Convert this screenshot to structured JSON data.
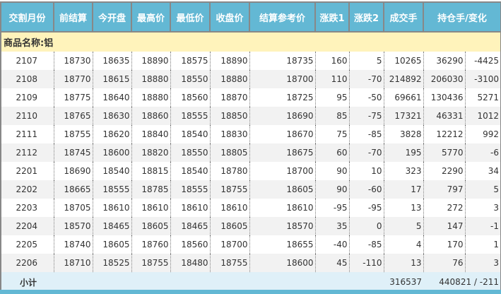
{
  "colors": {
    "header_bg": "#63b8d4",
    "category_bg": "#fff3bb",
    "alt_row_bg": "#f2f2f2",
    "subtotal_bg": "#dff0f8"
  },
  "headers": [
    "交割月份",
    "前结算",
    "今开盘",
    "最高价",
    "最低价",
    "收盘价",
    "结算参考价",
    "涨跌1",
    "涨跌2",
    "成交手",
    "持仓手/变化"
  ],
  "category": "商品名称:铝",
  "rows": [
    [
      "2107",
      "18730",
      "18635",
      "18890",
      "18575",
      "18890",
      "18735",
      "160",
      "5",
      "10265",
      "36290",
      "-4425"
    ],
    [
      "2108",
      "18770",
      "18615",
      "18880",
      "18550",
      "18880",
      "18700",
      "110",
      "-70",
      "214892",
      "206030",
      "-3100"
    ],
    [
      "2109",
      "18775",
      "18640",
      "18880",
      "18560",
      "18870",
      "18725",
      "95",
      "-50",
      "69661",
      "130436",
      "5271"
    ],
    [
      "2110",
      "18765",
      "18630",
      "18860",
      "18555",
      "18850",
      "18690",
      "85",
      "-75",
      "17321",
      "46331",
      "1012"
    ],
    [
      "2111",
      "18755",
      "18620",
      "18840",
      "18540",
      "18830",
      "18670",
      "75",
      "-85",
      "3828",
      "12212",
      "992"
    ],
    [
      "2112",
      "18745",
      "18600",
      "18820",
      "18550",
      "18805",
      "18675",
      "60",
      "-70",
      "195",
      "5770",
      "-6"
    ],
    [
      "2201",
      "18690",
      "18540",
      "18815",
      "18540",
      "18780",
      "18700",
      "90",
      "10",
      "323",
      "2290",
      "34"
    ],
    [
      "2202",
      "18665",
      "18555",
      "18785",
      "18555",
      "18755",
      "18605",
      "90",
      "-60",
      "17",
      "797",
      "5"
    ],
    [
      "2203",
      "18705",
      "18610",
      "18610",
      "18610",
      "18610",
      "18610",
      "-95",
      "-95",
      "13",
      "272",
      "3"
    ],
    [
      "2204",
      "18570",
      "18465",
      "18605",
      "18465",
      "18605",
      "18570",
      "35",
      "0",
      "5",
      "147",
      "-1"
    ],
    [
      "2205",
      "18740",
      "18605",
      "18760",
      "18560",
      "18700",
      "18655",
      "-40",
      "-85",
      "4",
      "170",
      "1"
    ],
    [
      "2206",
      "18710",
      "18525",
      "18755",
      "18480",
      "18755",
      "18600",
      "45",
      "-110",
      "13",
      "76",
      "3"
    ]
  ],
  "subtotal": {
    "label": "小计",
    "volume": "316537",
    "open_interest": "440821 / -211"
  }
}
